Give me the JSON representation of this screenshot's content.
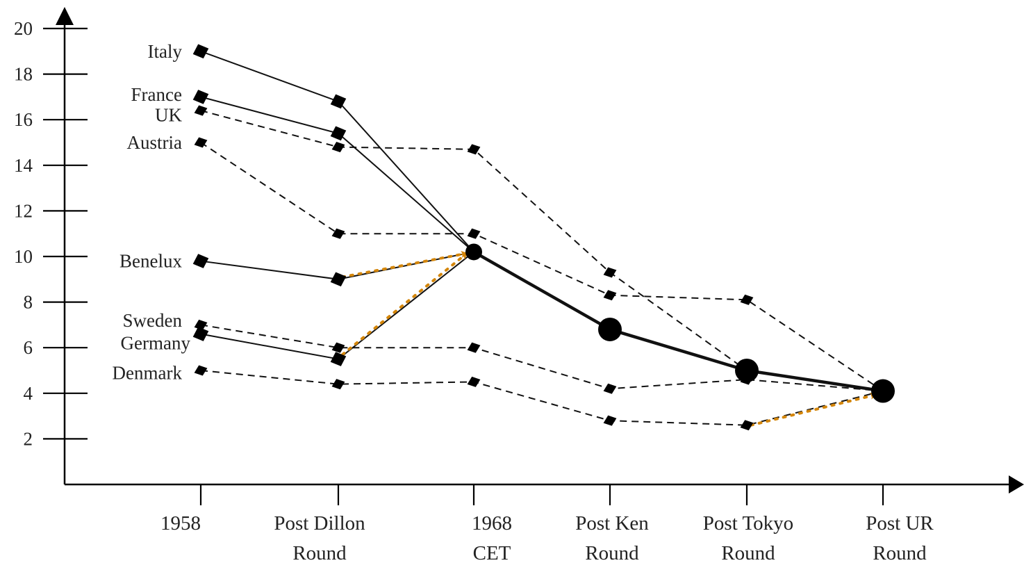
{
  "chart_data": {
    "type": "line",
    "title": "",
    "xlabel": "",
    "ylabel": "",
    "categories": [
      [
        "1958"
      ],
      [
        "Post Dillon",
        "Round"
      ],
      [
        "1968",
        "CET"
      ],
      [
        "Post Ken",
        "Round"
      ],
      [
        "Post Tokyo",
        "Round"
      ],
      [
        "Post UR",
        "Round"
      ]
    ],
    "yticks": [
      2,
      4,
      6,
      8,
      10,
      12,
      14,
      16,
      18,
      20
    ],
    "ylim": [
      0,
      20.5
    ],
    "grid": false,
    "series": [
      {
        "name": "Italy",
        "style": "solid",
        "marker": "diamond",
        "points": [
          [
            0,
            19.0
          ],
          [
            1,
            16.8
          ],
          [
            2,
            10.2
          ]
        ]
      },
      {
        "name": "France",
        "style": "solid",
        "marker": "diamond",
        "points": [
          [
            0,
            17.0
          ],
          [
            1,
            15.4
          ],
          [
            2,
            10.2
          ]
        ]
      },
      {
        "name": "UK",
        "style": "dashed",
        "marker": "diamond-small",
        "points": [
          [
            0,
            16.4
          ],
          [
            1,
            14.8
          ],
          [
            2,
            14.7
          ],
          [
            3,
            9.3
          ],
          [
            4,
            5.0
          ],
          [
            5,
            4.1
          ]
        ]
      },
      {
        "name": "Austria",
        "style": "dashed",
        "marker": "diamond-small",
        "points": [
          [
            0,
            15.0
          ],
          [
            1,
            11.0
          ],
          [
            2,
            11.0
          ],
          [
            3,
            8.3
          ],
          [
            4,
            8.1
          ],
          [
            5,
            4.1
          ]
        ]
      },
      {
        "name": "Benelux",
        "style": "solid",
        "marker": "diamond",
        "points": [
          [
            0,
            9.8
          ],
          [
            1,
            9.0
          ],
          [
            2,
            10.2
          ]
        ]
      },
      {
        "name": "Sweden",
        "style": "dashed",
        "marker": "diamond-small",
        "points": [
          [
            0,
            7.0
          ],
          [
            1,
            6.0
          ],
          [
            2,
            6.0
          ],
          [
            3,
            4.2
          ],
          [
            4,
            4.6
          ],
          [
            5,
            4.1
          ]
        ]
      },
      {
        "name": "Germany",
        "style": "solid",
        "marker": "diamond",
        "points": [
          [
            0,
            6.6
          ],
          [
            1,
            5.5
          ],
          [
            2,
            10.2
          ]
        ]
      },
      {
        "name": "Denmark",
        "style": "dashed",
        "marker": "diamond-small",
        "points": [
          [
            0,
            5.0
          ],
          [
            1,
            4.4
          ],
          [
            2,
            4.5
          ],
          [
            3,
            2.8
          ],
          [
            4,
            2.6
          ],
          [
            5,
            4.1
          ]
        ]
      },
      {
        "name": "CET",
        "style": "bold",
        "marker": "circle",
        "points": [
          [
            2,
            10.2
          ],
          [
            3,
            6.8
          ],
          [
            4,
            5.0
          ],
          [
            5,
            4.1
          ]
        ]
      }
    ],
    "arrows": [
      {
        "from": [
          1,
          9.1
        ],
        "to": [
          2,
          10.2
        ]
      },
      {
        "from": [
          1,
          5.7
        ],
        "to": [
          2,
          10.2
        ]
      },
      {
        "from": [
          4,
          2.6
        ],
        "to": [
          5,
          4.0
        ]
      }
    ],
    "arrow_color": "#D4860B",
    "line_color": "#111111"
  }
}
